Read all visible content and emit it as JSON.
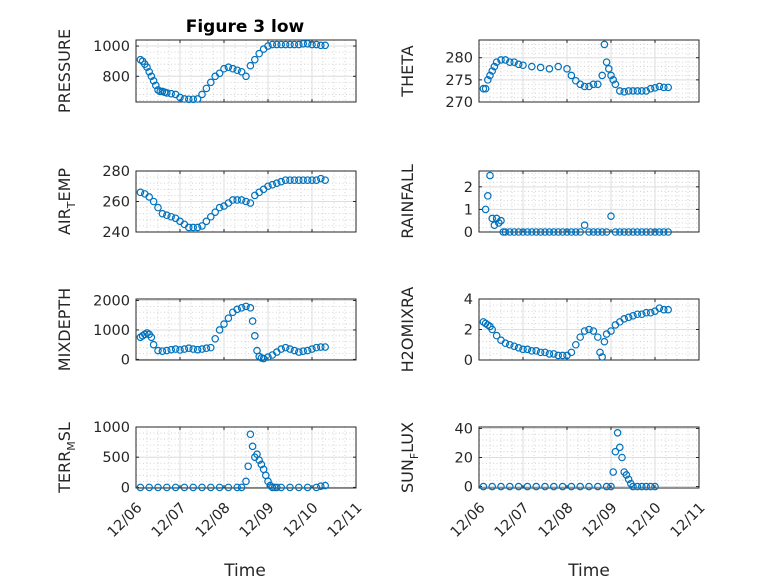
{
  "figure_title": "Figure 3 low",
  "x_axis_label": "Time",
  "x_tick_labels": [
    "12/06",
    "12/07",
    "12/08",
    "12/09",
    "12/10",
    "12/11"
  ],
  "colors": {
    "marker": "#0072BD",
    "grid": "#c9c9c9",
    "axis": "#262626"
  },
  "chart_data": [
    {
      "type": "scatter",
      "title": "Figure 3 low",
      "ylabel": "PRESSURE",
      "xlim": [
        0,
        5
      ],
      "ylim": [
        630,
        1040
      ],
      "yticks": [
        800,
        1000
      ],
      "x": [
        0.1,
        0.15,
        0.2,
        0.25,
        0.3,
        0.35,
        0.4,
        0.45,
        0.5,
        0.55,
        0.6,
        0.65,
        0.7,
        0.8,
        0.9,
        1.0,
        1.1,
        1.2,
        1.3,
        1.4,
        1.5,
        1.6,
        1.7,
        1.8,
        1.9,
        2.0,
        2.1,
        2.2,
        2.3,
        2.4,
        2.5,
        2.6,
        2.7,
        2.8,
        2.9,
        3.0,
        3.1,
        3.2,
        3.3,
        3.4,
        3.5,
        3.6,
        3.7,
        3.8,
        3.9,
        4.0,
        4.1,
        4.2,
        4.3
      ],
      "values": [
        910,
        900,
        880,
        860,
        830,
        800,
        770,
        740,
        710,
        700,
        700,
        695,
        690,
        685,
        680,
        660,
        650,
        648,
        648,
        650,
        680,
        720,
        760,
        800,
        820,
        850,
        860,
        850,
        840,
        830,
        800,
        870,
        910,
        950,
        980,
        1000,
        1010,
        1010,
        1010,
        1010,
        1010,
        1010,
        1010,
        1015,
        1015,
        1010,
        1010,
        1005,
        1005
      ]
    },
    {
      "type": "scatter",
      "ylabel": "THETA",
      "xlim": [
        0,
        5
      ],
      "ylim": [
        270,
        284
      ],
      "yticks": [
        270,
        275,
        280
      ],
      "x": [
        0.1,
        0.15,
        0.2,
        0.25,
        0.3,
        0.35,
        0.4,
        0.5,
        0.6,
        0.7,
        0.8,
        0.9,
        1.0,
        1.2,
        1.4,
        1.6,
        1.8,
        2.0,
        2.1,
        2.2,
        2.3,
        2.4,
        2.5,
        2.6,
        2.7,
        2.8,
        2.85,
        2.9,
        2.95,
        3.0,
        3.05,
        3.1,
        3.2,
        3.3,
        3.4,
        3.5,
        3.6,
        3.7,
        3.8,
        3.9,
        4.0,
        4.1,
        4.2,
        4.3
      ],
      "values": [
        273,
        273,
        275,
        276,
        277,
        278,
        279,
        279.5,
        279.5,
        279,
        279,
        278.5,
        278.3,
        278,
        277.8,
        277.5,
        278,
        277.5,
        276,
        274.8,
        274,
        273.5,
        273.5,
        274,
        274,
        276,
        283,
        279,
        277.5,
        276,
        275,
        274,
        272.5,
        272.3,
        272.5,
        272.5,
        272.5,
        272.5,
        272.5,
        273,
        273.2,
        273.5,
        273.3,
        273.3
      ]
    },
    {
      "type": "scatter",
      "ylabel": "AIR_TEMP",
      "xlim": [
        0,
        5
      ],
      "ylim": [
        240,
        280
      ],
      "yticks": [
        240,
        260,
        280
      ],
      "x": [
        0.1,
        0.2,
        0.3,
        0.4,
        0.5,
        0.6,
        0.7,
        0.8,
        0.9,
        1.0,
        1.1,
        1.2,
        1.3,
        1.4,
        1.5,
        1.6,
        1.7,
        1.8,
        1.9,
        2.0,
        2.1,
        2.2,
        2.3,
        2.4,
        2.5,
        2.6,
        2.7,
        2.8,
        2.9,
        3.0,
        3.1,
        3.2,
        3.3,
        3.4,
        3.5,
        3.6,
        3.7,
        3.8,
        3.9,
        4.0,
        4.1,
        4.2,
        4.3
      ],
      "values": [
        266,
        265,
        263,
        260,
        256,
        252,
        251,
        250,
        249,
        247,
        245,
        243,
        243,
        243,
        244,
        247,
        250,
        253,
        256,
        257,
        259,
        261,
        261,
        261,
        260,
        259,
        264,
        266,
        268,
        270,
        271,
        272,
        273,
        274,
        274,
        274,
        274,
        274,
        274,
        274,
        274,
        275,
        274
      ]
    },
    {
      "type": "scatter",
      "ylabel": "RAINFALL",
      "xlim": [
        0,
        5
      ],
      "ylim": [
        0,
        2.7
      ],
      "yticks": [
        0,
        1,
        2
      ],
      "x": [
        0.15,
        0.2,
        0.25,
        0.3,
        0.35,
        0.4,
        0.45,
        0.5,
        0.55,
        0.6,
        0.7,
        0.8,
        0.9,
        1.0,
        1.1,
        1.2,
        1.3,
        1.4,
        1.5,
        1.6,
        1.7,
        1.8,
        1.9,
        2.0,
        2.1,
        2.2,
        2.3,
        2.4,
        2.5,
        2.6,
        2.7,
        2.8,
        2.9,
        3.0,
        3.1,
        3.2,
        3.3,
        3.4,
        3.5,
        3.6,
        3.7,
        3.8,
        3.9,
        4.0,
        4.1,
        4.2,
        4.3
      ],
      "values": [
        1.0,
        1.6,
        2.5,
        0.6,
        0.3,
        0.6,
        0.4,
        0.5,
        0,
        0,
        0,
        0,
        0,
        0,
        0,
        0,
        0,
        0,
        0,
        0,
        0,
        0,
        0,
        0,
        0,
        0,
        0,
        0.3,
        0,
        0,
        0,
        0,
        0,
        0.7,
        0,
        0,
        0,
        0,
        0,
        0,
        0,
        0,
        0,
        0,
        0,
        0,
        0
      ]
    },
    {
      "type": "scatter",
      "ylabel": "MIXDEPTH",
      "xlim": [
        0,
        5
      ],
      "ylim": [
        -20,
        2050
      ],
      "yticks": [
        0,
        1000,
        2000
      ],
      "x": [
        0.1,
        0.15,
        0.2,
        0.25,
        0.3,
        0.35,
        0.4,
        0.5,
        0.6,
        0.7,
        0.8,
        0.9,
        1.0,
        1.1,
        1.2,
        1.3,
        1.4,
        1.5,
        1.6,
        1.7,
        1.8,
        1.9,
        2.0,
        2.1,
        2.2,
        2.3,
        2.4,
        2.5,
        2.6,
        2.65,
        2.7,
        2.75,
        2.8,
        2.85,
        2.9,
        3.0,
        3.1,
        3.2,
        3.3,
        3.4,
        3.5,
        3.6,
        3.7,
        3.8,
        3.9,
        4.0,
        4.1,
        4.2,
        4.3
      ],
      "values": [
        750,
        800,
        850,
        900,
        850,
        750,
        500,
        300,
        280,
        300,
        330,
        350,
        320,
        350,
        380,
        350,
        330,
        350,
        380,
        400,
        700,
        1000,
        1200,
        1400,
        1600,
        1700,
        1750,
        1800,
        1750,
        1300,
        800,
        300,
        100,
        50,
        30,
        80,
        150,
        250,
        350,
        400,
        350,
        300,
        250,
        280,
        300,
        350,
        400,
        420,
        420
      ]
    },
    {
      "type": "scatter",
      "ylabel": "H2OMIXRA",
      "xlim": [
        0,
        5
      ],
      "ylim": [
        0,
        4
      ],
      "yticks": [
        0,
        2,
        4
      ],
      "x": [
        0.1,
        0.15,
        0.2,
        0.25,
        0.3,
        0.4,
        0.5,
        0.6,
        0.7,
        0.8,
        0.9,
        1.0,
        1.1,
        1.2,
        1.3,
        1.4,
        1.5,
        1.6,
        1.7,
        1.8,
        1.9,
        2.0,
        2.1,
        2.2,
        2.3,
        2.4,
        2.5,
        2.6,
        2.7,
        2.75,
        2.8,
        2.85,
        2.9,
        3.0,
        3.1,
        3.2,
        3.3,
        3.4,
        3.5,
        3.6,
        3.7,
        3.8,
        3.9,
        4.0,
        4.1,
        4.2,
        4.3
      ],
      "values": [
        2.5,
        2.4,
        2.3,
        2.2,
        2.0,
        1.6,
        1.3,
        1.1,
        1.0,
        0.9,
        0.8,
        0.7,
        0.7,
        0.6,
        0.6,
        0.5,
        0.5,
        0.4,
        0.4,
        0.3,
        0.3,
        0.3,
        0.5,
        1.0,
        1.5,
        1.9,
        2.0,
        1.9,
        1.5,
        0.5,
        0.2,
        1.2,
        1.7,
        1.9,
        2.3,
        2.5,
        2.7,
        2.8,
        2.9,
        3.0,
        3.0,
        3.1,
        3.1,
        3.2,
        3.4,
        3.3,
        3.3
      ]
    },
    {
      "type": "scatter",
      "ylabel": "TERR_MSL",
      "xlim": [
        0,
        5
      ],
      "ylim": [
        -10,
        1000
      ],
      "yticks": [
        0,
        500,
        1000
      ],
      "x": [
        0.1,
        0.3,
        0.5,
        0.7,
        0.9,
        1.1,
        1.3,
        1.5,
        1.7,
        1.9,
        2.1,
        2.3,
        2.4,
        2.5,
        2.55,
        2.6,
        2.65,
        2.7,
        2.75,
        2.8,
        2.85,
        2.9,
        2.95,
        3.0,
        3.05,
        3.1,
        3.15,
        3.2,
        3.3,
        3.5,
        3.7,
        3.9,
        4.1,
        4.2,
        4.3
      ],
      "values": [
        0,
        0,
        0,
        0,
        0,
        0,
        0,
        0,
        0,
        0,
        0,
        0,
        0,
        100,
        350,
        880,
        680,
        500,
        550,
        450,
        380,
        300,
        200,
        100,
        30,
        0,
        0,
        0,
        0,
        0,
        0,
        0,
        0,
        20,
        30
      ]
    },
    {
      "type": "scatter",
      "ylabel": "SUN_FLUX",
      "xlim": [
        0,
        5
      ],
      "ylim": [
        -1,
        41
      ],
      "yticks": [
        0,
        20,
        40
      ],
      "x": [
        0.1,
        0.3,
        0.5,
        0.7,
        0.9,
        1.1,
        1.3,
        1.5,
        1.7,
        1.9,
        2.1,
        2.3,
        2.5,
        2.7,
        2.9,
        3.0,
        3.05,
        3.1,
        3.15,
        3.2,
        3.25,
        3.3,
        3.35,
        3.4,
        3.45,
        3.5,
        3.6,
        3.7,
        3.8,
        3.9,
        4.0
      ],
      "values": [
        0,
        0,
        0,
        0,
        0,
        0,
        0,
        0,
        0,
        0,
        0,
        0,
        0,
        0,
        0,
        0,
        10,
        24,
        37,
        27,
        20,
        10,
        8,
        5,
        2,
        0,
        0,
        0,
        0,
        0,
        0
      ]
    }
  ]
}
